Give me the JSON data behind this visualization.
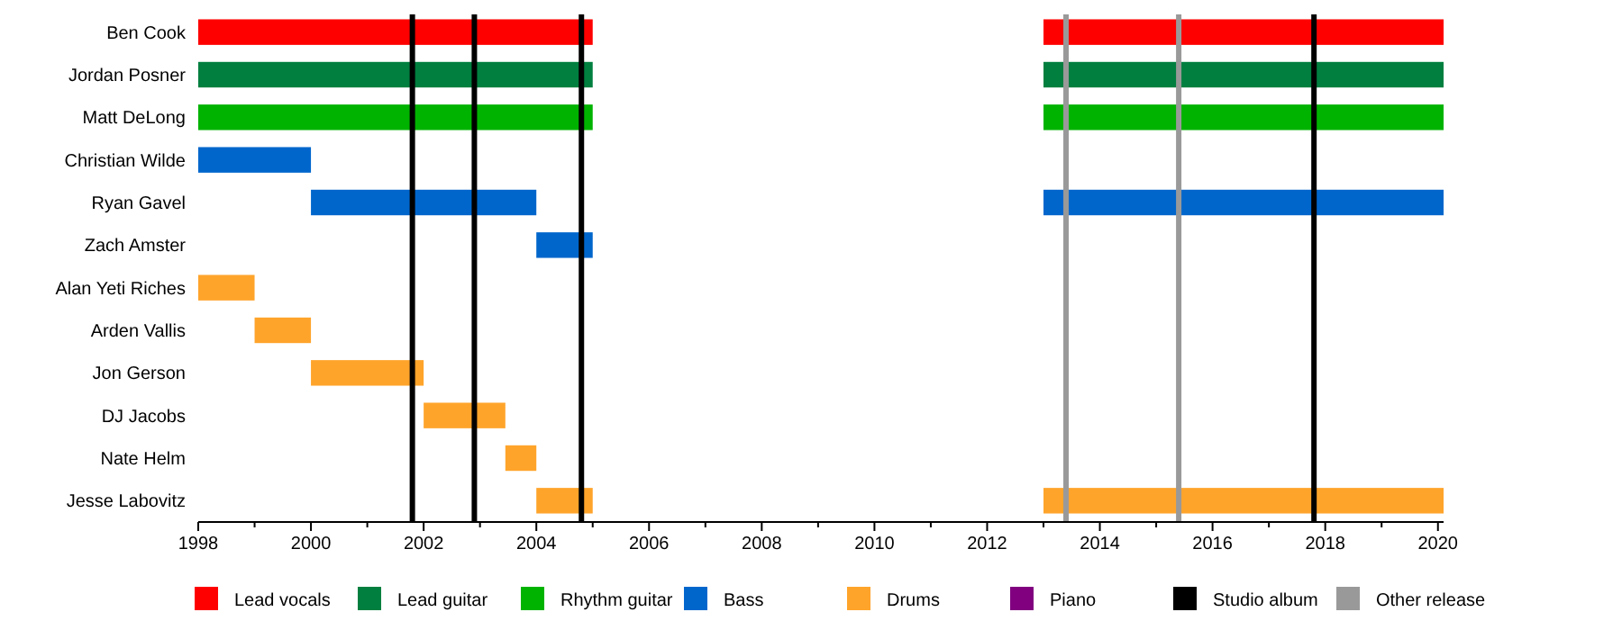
{
  "chart_data": {
    "type": "bar",
    "orientation": "horizontal",
    "categories": [
      "Ben Cook",
      "Jordan Posner",
      "Matt DeLong",
      "Christian Wilde",
      "Ryan Gavel",
      "Zach Amster",
      "Alan Yeti Riches",
      "Arden Vallis",
      "Jon Gerson",
      "DJ Jacobs",
      "Nate Helm",
      "Jesse Labovitz"
    ],
    "series": [
      {
        "name": "Lead vocals",
        "color": "#ff0000",
        "values": [
          7,
          null,
          null,
          null,
          null,
          null,
          null,
          null,
          null,
          null,
          null,
          null
        ],
        "base": [
          1998,
          null,
          null,
          null,
          null,
          null,
          null,
          null,
          null,
          null,
          null,
          null
        ]
      },
      {
        "color": "#ff0000",
        "values": [
          7.1,
          null,
          null,
          null,
          null,
          null,
          null,
          null,
          null,
          null,
          null,
          null
        ],
        "base": [
          2013,
          null,
          null,
          null,
          null,
          null,
          null,
          null,
          null,
          null,
          null,
          null
        ]
      },
      {
        "name": "Lead guitar",
        "color": "#007f3f",
        "values": [
          null,
          7,
          null,
          null,
          null,
          null,
          null,
          null,
          null,
          null,
          null,
          null
        ],
        "base": [
          null,
          1998,
          null,
          null,
          null,
          null,
          null,
          null,
          null,
          null,
          null,
          null
        ]
      },
      {
        "color": "#007f3f",
        "values": [
          null,
          7.1,
          null,
          null,
          null,
          null,
          null,
          null,
          null,
          null,
          null,
          null
        ],
        "base": [
          null,
          2013,
          null,
          null,
          null,
          null,
          null,
          null,
          null,
          null,
          null,
          null
        ]
      },
      {
        "name": "Rhythm guitar",
        "color": "#00b300",
        "values": [
          null,
          null,
          7,
          null,
          null,
          null,
          null,
          null,
          null,
          null,
          null,
          null
        ],
        "base": [
          null,
          null,
          1998,
          null,
          null,
          null,
          null,
          null,
          null,
          null,
          null,
          null
        ]
      },
      {
        "color": "#00b300",
        "values": [
          null,
          null,
          7.1,
          null,
          null,
          null,
          null,
          null,
          null,
          null,
          null,
          null
        ],
        "base": [
          null,
          null,
          2013,
          null,
          null,
          null,
          null,
          null,
          null,
          null,
          null,
          null
        ]
      },
      {
        "name": "Bass",
        "color": "#0066cc",
        "values": [
          null,
          null,
          null,
          2,
          4,
          1,
          null,
          null,
          null,
          null,
          null,
          null
        ],
        "base": [
          null,
          null,
          null,
          1998,
          2000,
          2004,
          null,
          null,
          null,
          null,
          null,
          null
        ]
      },
      {
        "color": "#0066cc",
        "values": [
          null,
          null,
          null,
          null,
          7.1,
          null,
          null,
          null,
          null,
          null,
          null,
          null
        ],
        "base": [
          null,
          null,
          null,
          null,
          2013,
          null,
          null,
          null,
          null,
          null,
          null,
          null
        ]
      },
      {
        "name": "Drums",
        "color": "#ffa42b",
        "values": [
          null,
          null,
          null,
          null,
          null,
          null,
          1,
          1,
          2,
          1.45,
          0.55,
          1
        ],
        "base": [
          null,
          null,
          null,
          null,
          null,
          null,
          1998,
          1999,
          2000,
          2002,
          2003.45,
          2004
        ]
      },
      {
        "color": "#ffa42b",
        "values": [
          null,
          null,
          null,
          null,
          null,
          null,
          null,
          null,
          null,
          null,
          null,
          7.1
        ],
        "base": [
          null,
          null,
          null,
          null,
          null,
          null,
          null,
          null,
          null,
          null,
          null,
          2013
        ]
      },
      {
        "name": "Piano",
        "color": "#800080",
        "values": [
          null,
          null,
          null,
          null,
          null,
          null,
          null,
          null,
          null,
          null,
          null,
          null
        ]
      }
    ],
    "ref_lines": [
      {
        "axis": "x",
        "value": 2001.8,
        "color": "#000000",
        "label": "Studio album"
      },
      {
        "axis": "x",
        "value": 2002.9,
        "color": "#000000"
      },
      {
        "axis": "x",
        "value": 2004.8,
        "color": "#000000"
      },
      {
        "axis": "x",
        "value": 2017.8,
        "color": "#000000"
      },
      {
        "axis": "x",
        "value": 2013.4,
        "color": "#999999",
        "label": "Other release"
      },
      {
        "axis": "x",
        "value": 2015.4,
        "color": "#999999"
      }
    ],
    "xlim": [
      1998,
      2020.1
    ],
    "xticks": [
      1998,
      {
        "value": 1999,
        "label": null
      },
      2000,
      {
        "value": 2001,
        "label": null
      },
      2002,
      {
        "value": 2003,
        "label": null
      },
      2004,
      {
        "value": 2005,
        "label": null
      },
      2006,
      {
        "value": 2007,
        "label": null
      },
      2008,
      {
        "value": 2009,
        "label": null
      },
      2010,
      {
        "value": 2011,
        "label": null
      },
      2012,
      {
        "value": 2013,
        "label": null
      },
      2014,
      {
        "value": 2015,
        "label": null
      },
      2016,
      {
        "value": 2017,
        "label": null
      },
      2018,
      {
        "value": 2019,
        "label": null
      },
      2020
    ],
    "legend": "bottom",
    "grid": false
  }
}
